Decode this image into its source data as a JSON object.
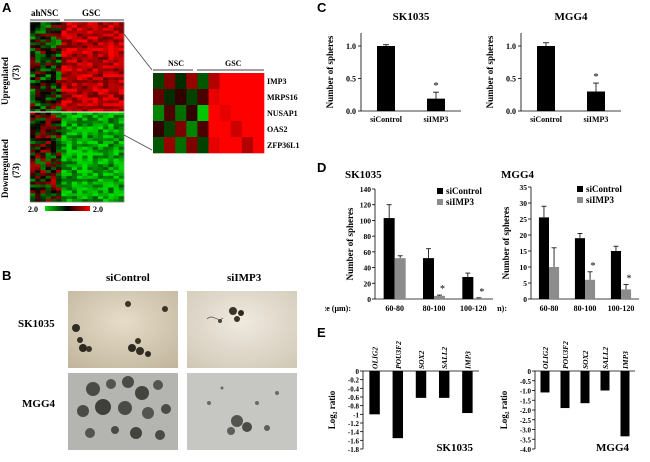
{
  "panels": {
    "a": {
      "letter": "A",
      "group_left": "ahNSC",
      "group_right": "GSC",
      "up_label": "Upregulated",
      "up_count": "(73)",
      "down_label": "Downregulated",
      "down_count": "(73)",
      "scale_min": "2.0",
      "scale_max": "2.0",
      "zoom_group_left": "NSC",
      "zoom_group_right": "GSC",
      "genes": [
        "IMP3",
        "MRPS16",
        "NUSAP1",
        "OAS2",
        "ZFP36L1"
      ],
      "colors": {
        "up": "#ff0000",
        "down": "#00dd00",
        "neutral": "#000000"
      }
    },
    "b": {
      "letter": "B",
      "col1": "siControl",
      "col2": "siIMP3",
      "row1": "SK1035",
      "row2": "MGG4"
    },
    "c": {
      "letter": "C"
    },
    "d": {
      "letter": "D"
    },
    "e": {
      "letter": "E"
    }
  },
  "chart_data": [
    {
      "id": "c1",
      "type": "bar",
      "title": "SK1035",
      "ylabel": "Number of spheres",
      "categories": [
        "siControl",
        "siIMP3"
      ],
      "values": [
        1.0,
        0.19
      ],
      "errors": [
        0.02,
        0.1
      ],
      "ylim": [
        0,
        1.2
      ],
      "yticks": [
        "0.0",
        "0.5",
        "1.0"
      ],
      "annotations": [
        "",
        "*"
      ]
    },
    {
      "id": "c2",
      "type": "bar",
      "title": "MGG4",
      "ylabel": "Number of spheres",
      "categories": [
        "siControl",
        "siIMP3"
      ],
      "values": [
        1.0,
        0.3
      ],
      "errors": [
        0.05,
        0.13
      ],
      "ylim": [
        0,
        1.2
      ],
      "yticks": [
        "0.0",
        "0.5",
        "1.0"
      ],
      "annotations": [
        "",
        "*"
      ]
    },
    {
      "id": "d1",
      "type": "bar",
      "title": "SK1035",
      "ylabel": "Number of spheres",
      "xlabel": "Size (μm):",
      "categories": [
        "60-80",
        "80-100",
        "100-120"
      ],
      "series": [
        {
          "name": "siControl",
          "color": "#000000",
          "values": [
            103,
            52,
            28
          ],
          "errors": [
            17,
            12,
            5
          ]
        },
        {
          "name": "siIMP3",
          "color": "#8c8c8c",
          "values": [
            52,
            4,
            1
          ],
          "errors": [
            3,
            1,
            0.5
          ]
        }
      ],
      "ylim": [
        0,
        140
      ],
      "yticks": [
        "0",
        "20",
        "40",
        "60",
        "80",
        "100",
        "120",
        "140"
      ],
      "annotations": [
        "",
        "*",
        "*"
      ],
      "legend": "top-right"
    },
    {
      "id": "d2",
      "type": "bar",
      "title": "MGG4",
      "ylabel": "Number of spheres",
      "xlabel": "Size (μm):",
      "categories": [
        "60-80",
        "80-100",
        "100-120"
      ],
      "series": [
        {
          "name": "siControl",
          "color": "#000000",
          "values": [
            25.5,
            19,
            15
          ],
          "errors": [
            3.5,
            1.5,
            1.5
          ]
        },
        {
          "name": "siIMP3",
          "color": "#8c8c8c",
          "values": [
            10,
            6,
            3
          ],
          "errors": [
            6,
            2.5,
            1.5
          ]
        }
      ],
      "ylim": [
        0,
        35
      ],
      "yticks": [
        "0",
        "5",
        "10",
        "15",
        "20",
        "25",
        "30",
        "35"
      ],
      "annotations": [
        "",
        "*",
        "*"
      ],
      "legend": "top-right"
    },
    {
      "id": "e1",
      "type": "bar",
      "title": "SK1035",
      "ylabel": "Log₂ ratio",
      "categories": [
        "OLIG2",
        "POU3F2",
        "SOX2",
        "SALL2",
        "IMP3"
      ],
      "values": [
        -1.0,
        -1.55,
        -0.62,
        -0.62,
        -0.97
      ],
      "ylim": [
        -1.8,
        0
      ],
      "yticks": [
        "0",
        "-0.2",
        "-0.4",
        "-0.6",
        "-0.8",
        "-1",
        "-1.2",
        "-1.4",
        "-1.6",
        "-1.8"
      ]
    },
    {
      "id": "e2",
      "type": "bar",
      "title": "MGG4",
      "ylabel": "Log₂ ratio",
      "categories": [
        "OLIG2",
        "POU3F2",
        "SOX2",
        "SALL2",
        "IMP3"
      ],
      "values": [
        -1.1,
        -1.9,
        -1.65,
        -1.0,
        -3.35
      ],
      "ylim": [
        -4,
        0
      ],
      "yticks": [
        "0",
        "-0.5",
        "-1.0",
        "-1.5",
        "-2.0",
        "-2.5",
        "-3.0",
        "-3.5",
        "-4.0"
      ]
    }
  ]
}
